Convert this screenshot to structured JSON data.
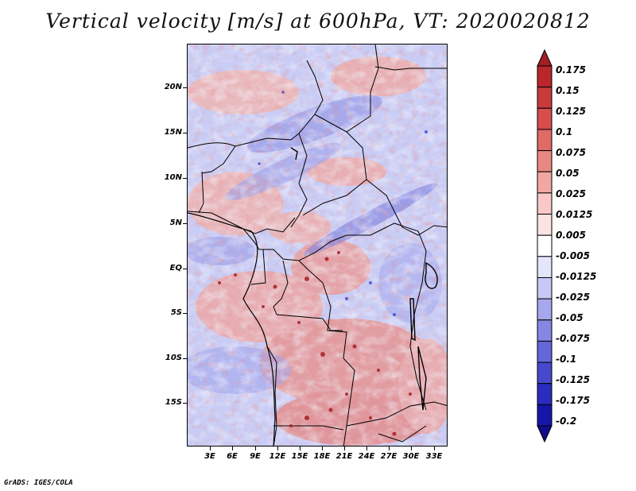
{
  "title": "Vertical velocity [m/s] at 600hPa, VT: 2020020812",
  "lat_labels": [
    "20N",
    "15N",
    "10N",
    "5N",
    "EQ",
    "5S",
    "10S",
    "15S"
  ],
  "lon_labels": [
    "3E",
    "6E",
    "9E",
    "12E",
    "15E",
    "18E",
    "21E",
    "24E",
    "27E",
    "30E",
    "33E"
  ],
  "colorbar": {
    "labels": [
      "0.175",
      "0.15",
      "0.125",
      "0.1",
      "0.075",
      "0.05",
      "0.025",
      "0.0125",
      "0.005",
      "-0.005",
      "-0.0125",
      "-0.025",
      "-0.05",
      "-0.075",
      "-0.1",
      "-0.125",
      "-0.175",
      "-0.2"
    ],
    "colors": [
      "#a51e23",
      "#b9272c",
      "#c93a3a",
      "#d64e4c",
      "#e06a66",
      "#e98882",
      "#f1a8a4",
      "#f8c9c6",
      "#fbe4e2",
      "#ffffff",
      "#e4e4fb",
      "#c7c8f3",
      "#a6a7ec",
      "#8587e3",
      "#6567d9",
      "#4749cc",
      "#2a2cbd",
      "#1515a6",
      "#140c8a"
    ]
  },
  "credit": "GrADS: IGES/COLA"
}
